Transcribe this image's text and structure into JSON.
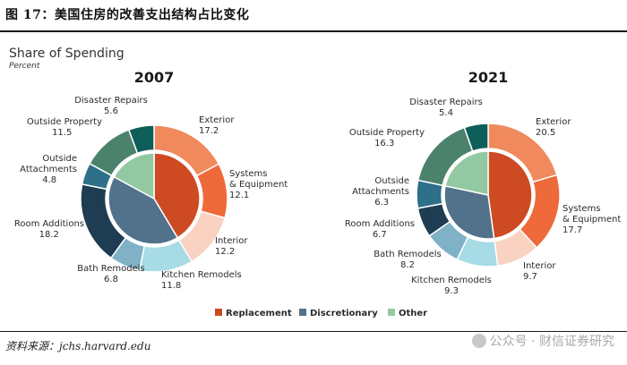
{
  "figure": {
    "title": "图 17：美国住房的改善支出结构占比变化",
    "source": "资料来源：jchs.harvard.edu",
    "watermark": "公众号 · 财信证券研究"
  },
  "chart_data": {
    "type": "pie",
    "title": "Share of Spending",
    "subtitle": "Percent",
    "colors": {
      "Exterior": "#f0895c",
      "Systems & Equipment": "#ee6a3a",
      "Interior": "#fad2c2",
      "Kitchen Remodels": "#a7dbe6",
      "Bath Remodels": "#7fb1c7",
      "Room Additions": "#1e3d52",
      "Outside Attachments": "#2e6f8a",
      "Outside Property": "#4b826c",
      "Disaster Repairs": "#0e5e5a",
      "Replacement": "#cd4a22",
      "Discretionary": "#52718a",
      "Other": "#92c9a2"
    },
    "legend": [
      "Replacement",
      "Discretionary",
      "Other"
    ],
    "charts": [
      {
        "year": "2007",
        "outer": [
          {
            "name": "Exterior",
            "label": "Exterior",
            "value": 17.2
          },
          {
            "name": "Systems & Equipment",
            "label": "Systems\n& Equipment",
            "value": 12.1
          },
          {
            "name": "Interior",
            "label": "Interior",
            "value": 12.2
          },
          {
            "name": "Kitchen Remodels",
            "label": "Kitchen Remodels",
            "value": 11.8
          },
          {
            "name": "Bath Remodels",
            "label": "Bath Remodels",
            "value": 6.8
          },
          {
            "name": "Room Additions",
            "label": "Room Additions",
            "value": 18.2
          },
          {
            "name": "Outside Attachments",
            "label": "Outside\nAttachments",
            "value": 4.8
          },
          {
            "name": "Outside Property",
            "label": "Outside Property",
            "value": 11.5
          },
          {
            "name": "Disaster Repairs",
            "label": "Disaster Repairs",
            "value": 5.6
          }
        ],
        "inner": [
          {
            "name": "Replacement",
            "value": 41.5
          },
          {
            "name": "Discretionary",
            "value": 41.6
          },
          {
            "name": "Other",
            "value": 17.1
          }
        ]
      },
      {
        "year": "2021",
        "outer": [
          {
            "name": "Exterior",
            "label": "Exterior",
            "value": 20.5
          },
          {
            "name": "Systems & Equipment",
            "label": "Systems\n& Equipment",
            "value": 17.7
          },
          {
            "name": "Interior",
            "label": "Interior",
            "value": 9.7
          },
          {
            "name": "Kitchen Remodels",
            "label": "Kitchen Remodels",
            "value": 9.3
          },
          {
            "name": "Bath Remodels",
            "label": "Bath Remodels",
            "value": 8.2
          },
          {
            "name": "Room Additions",
            "label": "Room Additions",
            "value": 6.7
          },
          {
            "name": "Outside Attachments",
            "label": "Outside\nAttachments",
            "value": 6.3
          },
          {
            "name": "Outside Property",
            "label": "Outside Property",
            "value": 16.3
          },
          {
            "name": "Disaster Repairs",
            "label": "Disaster Repairs",
            "value": 5.4
          }
        ],
        "inner": [
          {
            "name": "Replacement",
            "value": 47.9
          },
          {
            "name": "Discretionary",
            "value": 30.5
          },
          {
            "name": "Other",
            "value": 21.7
          }
        ]
      }
    ]
  }
}
